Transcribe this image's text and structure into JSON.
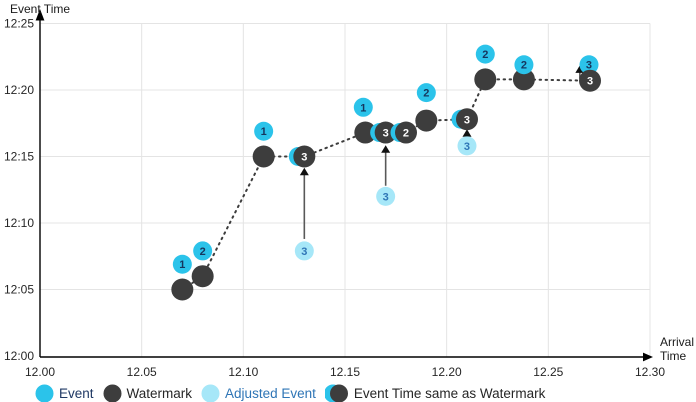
{
  "colors": {
    "event": "#2BC3EA",
    "event_number": "#16365D",
    "watermark": "#3D3D3D",
    "watermark_number": "#FFFFFF",
    "adjusted": "#A6E7F8",
    "adjusted_number": "#2E75B6",
    "grid": "#E4E4E4",
    "axis": "#000000",
    "tick_text": "#262626",
    "arrow_shaft": "#595959",
    "arrow_head": "#111111",
    "legend_event_text": "#1F3864",
    "legend_dark_text": "#262626",
    "legend_adjusted_text": "#2E75B6"
  },
  "chart_data": {
    "type": "scatter",
    "xlabel": "Arrival Time",
    "ylabel": "Event Time",
    "grid": true,
    "legend_position": "bottom",
    "x_axis": {
      "min": 12.0,
      "max": 12.3,
      "tick_values": [
        12.0,
        12.05,
        12.1,
        12.15,
        12.2,
        12.25,
        12.3
      ],
      "tick_labels": [
        "12.00",
        "12.05",
        "12.10",
        "12.15",
        "12.20",
        "12.25",
        "12.30"
      ]
    },
    "y_axis": {
      "tick_minutes": [
        0,
        5,
        10,
        15,
        20,
        25
      ],
      "tick_labels": [
        "12:00",
        "12:05",
        "12:10",
        "12:15",
        "12:20",
        "12:25"
      ]
    },
    "events": [
      {
        "label": "1",
        "arrival": 12.07,
        "event_min": 6.9,
        "event_time": "~12:07"
      },
      {
        "label": "2",
        "arrival": 12.08,
        "event_min": 7.9,
        "event_time": "~12:08"
      },
      {
        "label": "1",
        "arrival": 12.11,
        "event_min": 16.9,
        "event_time": "~12:17"
      },
      {
        "label": "1",
        "arrival": 12.159,
        "event_min": 18.7,
        "event_time": "~12:19"
      },
      {
        "label": "2",
        "arrival": 12.19,
        "event_min": 19.8,
        "event_time": "~12:20"
      },
      {
        "label": "2",
        "arrival": 12.219,
        "event_min": 22.7,
        "event_time": "~12:23"
      },
      {
        "label": "2",
        "arrival": 12.238,
        "event_min": 21.9,
        "event_time": "~12:22"
      },
      {
        "label": "3",
        "arrival": 12.27,
        "event_min": 21.9,
        "event_time": "~12:22"
      }
    ],
    "watermarks": [
      {
        "arrival": 12.07,
        "event_min": 5.0,
        "event_time": "12:05"
      },
      {
        "arrival": 12.08,
        "event_min": 6.0,
        "event_time": "12:06"
      },
      {
        "arrival": 12.11,
        "event_min": 15.0,
        "event_time": "12:15"
      },
      {
        "arrival": 12.16,
        "event_min": 16.8,
        "event_time": "~12:17"
      },
      {
        "arrival": 12.19,
        "event_min": 17.7,
        "event_time": "~12:18"
      },
      {
        "arrival": 12.219,
        "event_min": 20.8,
        "event_time": "~12:21"
      },
      {
        "arrival": 12.238,
        "event_min": 20.8,
        "event_time": "~12:21"
      }
    ],
    "same_as_watermark": [
      {
        "label": "3",
        "arrival": 12.13,
        "event_min": 15.0,
        "event_time": "12:15",
        "crescent": true
      },
      {
        "label": "3",
        "arrival": 12.17,
        "event_min": 16.8,
        "event_time": "~12:17",
        "crescent": true
      },
      {
        "label": "2",
        "arrival": 12.18,
        "event_min": 16.8,
        "event_time": "~12:17",
        "crescent": true
      },
      {
        "label": "3",
        "arrival": 12.21,
        "event_min": 17.8,
        "event_time": "~12:18",
        "crescent": true
      },
      {
        "label": "3",
        "arrival": 12.2705,
        "event_min": 20.7,
        "event_time": "~12:21",
        "crescent": false
      }
    ],
    "adjusted_events": [
      {
        "label": "3",
        "arrival": 12.13,
        "event_min": 7.9,
        "event_time": "~12:08"
      },
      {
        "label": "3",
        "arrival": 12.17,
        "event_min": 12.0,
        "event_time": "12:12"
      },
      {
        "label": "3",
        "arrival": 12.21,
        "event_min": 15.8,
        "event_time": "~12:16"
      }
    ],
    "adjustment_arrows": [
      {
        "x": 12.13,
        "from_min": 8.8,
        "to_min": 14.15
      },
      {
        "x": 12.17,
        "from_min": 12.8,
        "to_min": 15.85
      },
      {
        "x": 12.21,
        "from_min": 16.1,
        "to_min": 17.05
      },
      {
        "x": 12.2655,
        "from_min": 20.85,
        "to_min": 21.85
      }
    ]
  },
  "legend": {
    "items": [
      {
        "key": "event",
        "label": "Event"
      },
      {
        "key": "watermark",
        "label": "Watermark"
      },
      {
        "key": "adjusted",
        "label": "Adjusted Event"
      },
      {
        "key": "same",
        "label": "Event Time same as Watermark"
      }
    ]
  }
}
